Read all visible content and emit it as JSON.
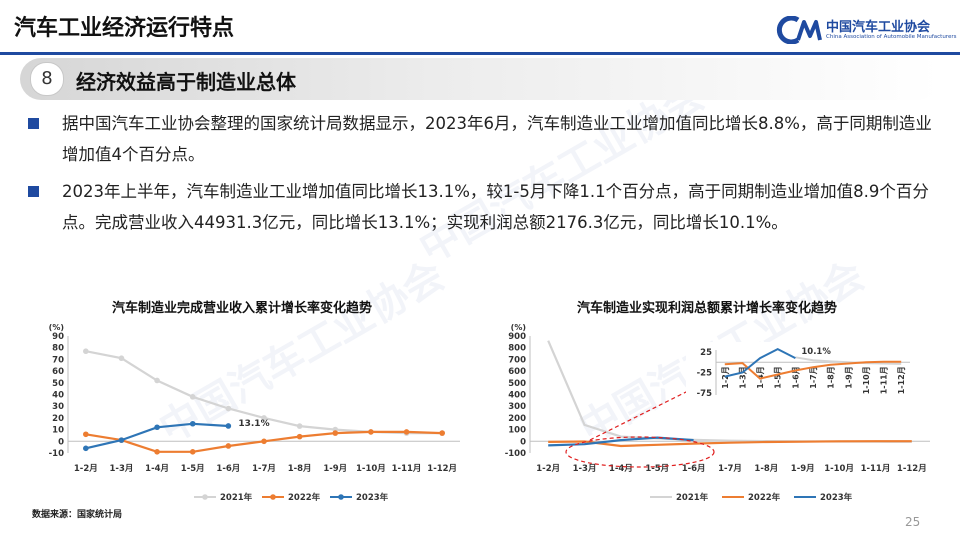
{
  "header": {
    "title": "汽车工业经济运行特点",
    "logo_cn": "中国汽车工业协会",
    "logo_en": "China Association of Automobile Manufacturers"
  },
  "section": {
    "number": "8",
    "title": "经济效益高于制造业总体"
  },
  "bullets": [
    "据中国汽车工业协会整理的国家统计局数据显示，2023年6月，汽车制造业工业增加值同比增长8.8%，高于同期制造业增加值4个百分点。",
    "2023年上半年，汽车制造业工业增加值同比增长13.1%，较1-5月下降1.1个百分点，高于同期制造业增加值8.9个百分点。完成营业收入44931.3亿元，同比增长13.1%；实现利润总额2176.3亿元，同比增长10.1%。"
  ],
  "colors": {
    "s2021": "#d4d4d4",
    "s2022": "#ed7d31",
    "s2023": "#2e75b6",
    "accent": "#1f4aa0",
    "ellipse": "#e02020"
  },
  "chart_data": [
    {
      "type": "line",
      "title": "汽车制造业完成营业收入累计增长率变化趋势",
      "ylabel": "(%)",
      "categories": [
        "1-2月",
        "1-3月",
        "1-4月",
        "1-5月",
        "1-6月",
        "1-7月",
        "1-8月",
        "1-9月",
        "1-10月",
        "1-11月",
        "1-12月"
      ],
      "ylim": [
        -10,
        90
      ],
      "yticks": [
        -10,
        0,
        10,
        20,
        30,
        40,
        50,
        60,
        70,
        80,
        90
      ],
      "annotation": "13.1%",
      "series": [
        {
          "name": "2021年",
          "values": [
            77,
            71,
            52,
            38,
            28,
            20,
            13,
            10,
            8,
            7,
            7
          ]
        },
        {
          "name": "2022年",
          "values": [
            6,
            1,
            -9,
            -9,
            -4,
            0,
            4,
            7,
            8,
            8,
            7
          ]
        },
        {
          "name": "2023年",
          "values": [
            -6,
            1,
            12,
            15,
            13.1,
            null,
            null,
            null,
            null,
            null,
            null
          ]
        }
      ]
    },
    {
      "type": "line",
      "title": "汽车制造业实现利润总额累计增长率变化趋势",
      "ylabel": "(%)",
      "categories": [
        "1-2月",
        "1-3月",
        "1-4月",
        "1-5月",
        "1-6月",
        "1-7月",
        "1-8月",
        "1-9月",
        "1-10月",
        "1-11月",
        "1-12月"
      ],
      "ylim": [
        -100,
        900
      ],
      "yticks": [
        -100,
        0,
        100,
        200,
        300,
        400,
        500,
        600,
        700,
        800,
        900
      ],
      "annotation": "10.1%",
      "series": [
        {
          "name": "2021年",
          "values": [
            860,
            140,
            40,
            25,
            12,
            5,
            2,
            0,
            -2,
            -3,
            -4
          ]
        },
        {
          "name": "2022年",
          "values": [
            -5,
            -2,
            -40,
            -30,
            -20,
            -12,
            -6,
            -3,
            0,
            1,
            1
          ]
        },
        {
          "name": "2023年",
          "values": [
            -35,
            -25,
            10,
            32,
            10.1,
            null,
            null,
            null,
            null,
            null,
            null
          ]
        }
      ],
      "inset": {
        "ylim": [
          -75,
          25
        ],
        "yticks": [
          -75,
          -25,
          25
        ],
        "annotation": "10.1%",
        "series": [
          {
            "name": "2021年",
            "values": [
              null,
              null,
              null,
              null,
              12,
              5,
              2,
              0,
              -2,
              -3,
              -4
            ]
          },
          {
            "name": "2022年",
            "values": [
              -5,
              -2,
              -40,
              -30,
              -20,
              -12,
              -6,
              -3,
              0,
              1,
              1
            ]
          },
          {
            "name": "2023年",
            "values": [
              -35,
              -25,
              10,
              32,
              10.1,
              null,
              null,
              null,
              null,
              null,
              null
            ]
          }
        ]
      }
    }
  ],
  "source": "数据来源：国家统计局",
  "page_number": "25"
}
